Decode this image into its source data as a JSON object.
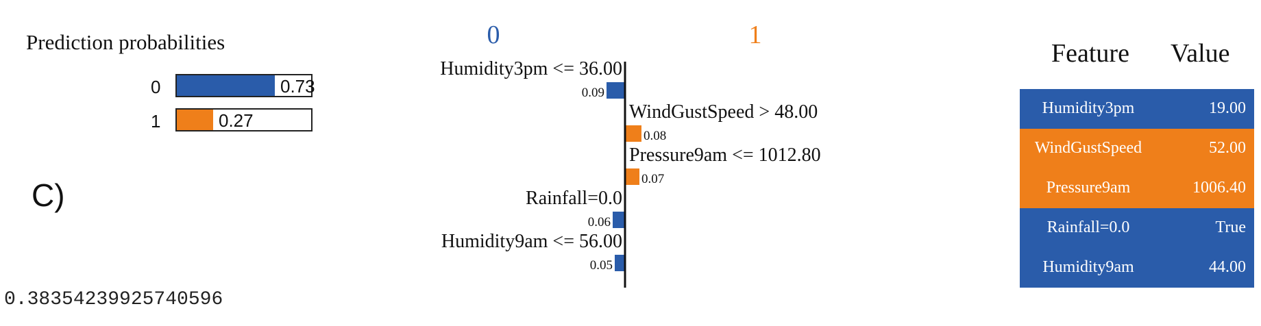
{
  "colors": {
    "class0": "#2a5caa",
    "class1": "#ef7f1a",
    "axis": "#111111"
  },
  "prediction": {
    "title": "Prediction probabilities",
    "classes": [
      {
        "label": "0",
        "probability": 0.73,
        "text": "0.73",
        "color": "#2a5caa"
      },
      {
        "label": "1",
        "probability": 0.27,
        "text": "0.27",
        "color": "#ef7f1a"
      }
    ]
  },
  "panel_letter": "C)",
  "score_output": "0.38354239925740596",
  "chart_data": {
    "type": "bar",
    "orientation": "horizontal-diverging",
    "class_labels": [
      "0",
      "1"
    ],
    "features": [
      {
        "label": "Humidity3pm <= 36.00",
        "value": 0.09,
        "value_text": "0.09",
        "class": "0"
      },
      {
        "label": "WindGustSpeed > 48.00",
        "value": 0.08,
        "value_text": "0.08",
        "class": "1"
      },
      {
        "label": "Pressure9am <= 1012.80",
        "value": 0.07,
        "value_text": "0.07",
        "class": "1"
      },
      {
        "label": "Rainfall=0.0",
        "value": 0.06,
        "value_text": "0.06",
        "class": "0"
      },
      {
        "label": "Humidity9am <= 56.00",
        "value": 0.05,
        "value_text": "0.05",
        "class": "0"
      }
    ]
  },
  "feature_table": {
    "headers": {
      "feature": "Feature",
      "value": "Value"
    },
    "rows": [
      {
        "feature": "Humidity3pm",
        "value": "19.00",
        "class": "0"
      },
      {
        "feature": "WindGustSpeed",
        "value": "52.00",
        "class": "1"
      },
      {
        "feature": "Pressure9am",
        "value": "1006.40",
        "class": "1"
      },
      {
        "feature": "Rainfall=0.0",
        "value": "True",
        "class": "0"
      },
      {
        "feature": "Humidity9am",
        "value": "44.00",
        "class": "0"
      }
    ]
  }
}
